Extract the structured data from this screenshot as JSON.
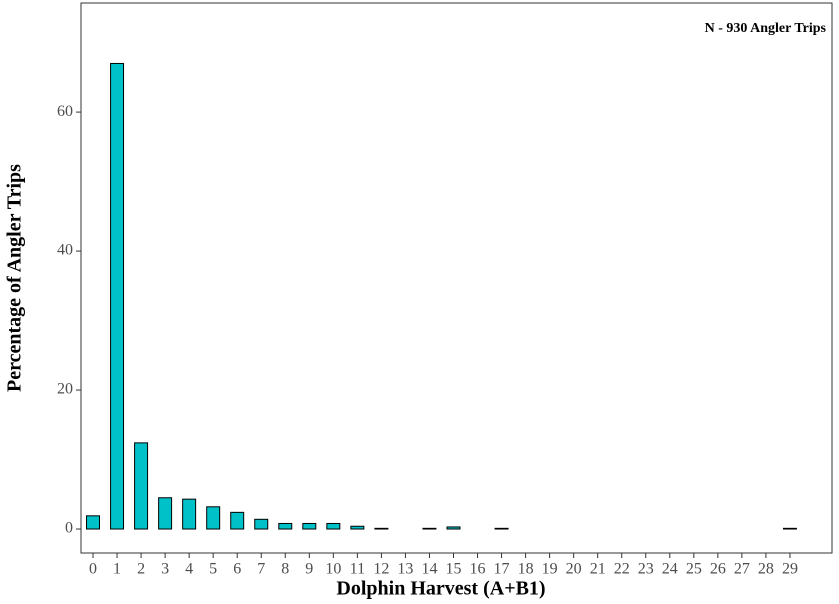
{
  "chart_data": {
    "type": "bar",
    "x_label": "Dolphin Harvest (A+B1)",
    "y_label": "Percentage of Angler Trips",
    "annotation": "N - 930 Angler Trips",
    "x": [
      0,
      1,
      2,
      3,
      4,
      5,
      6,
      7,
      8,
      9,
      10,
      11,
      12,
      13,
      14,
      15,
      16,
      17,
      18,
      19,
      20,
      21,
      22,
      23,
      24,
      25,
      26,
      27,
      28,
      29
    ],
    "values": [
      1.9,
      67.0,
      12.4,
      4.5,
      4.3,
      3.2,
      2.4,
      1.4,
      0.8,
      0.8,
      0.8,
      0.4,
      0.1,
      0,
      0.1,
      0.3,
      0,
      0.1,
      0,
      0,
      0,
      0,
      0,
      0,
      0,
      0,
      0,
      0,
      0,
      0.1
    ],
    "color": "#00c0c8",
    "xlim": [
      -0.5,
      30.75
    ],
    "xticks": [
      0,
      1,
      2,
      3,
      4,
      5,
      6,
      7,
      8,
      9,
      10,
      11,
      12,
      13,
      14,
      15,
      16,
      17,
      18,
      19,
      20,
      21,
      22,
      23,
      24,
      25,
      26,
      27,
      28,
      29
    ],
    "ylim": [
      -3.45,
      75.7
    ],
    "yticks": [
      0,
      20,
      40,
      60
    ]
  }
}
